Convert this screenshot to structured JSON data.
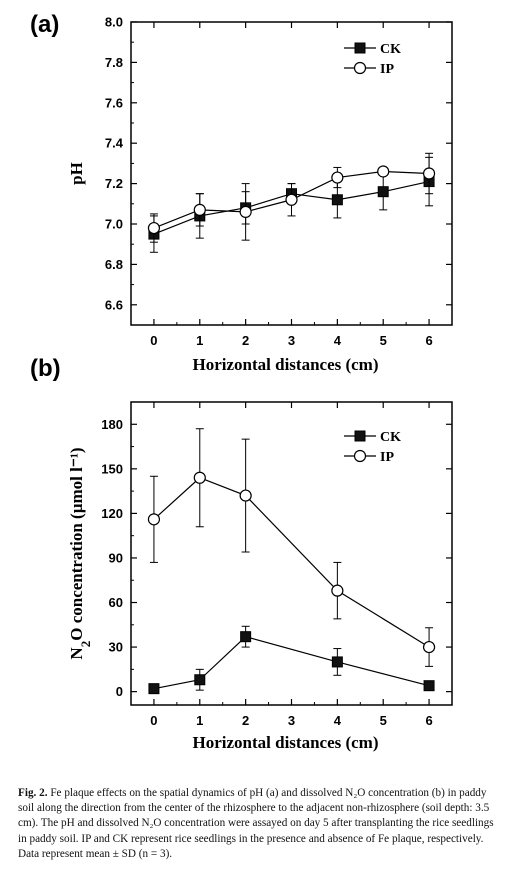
{
  "chart_data": [
    {
      "type": "line",
      "panel_label": "(a)",
      "xlabel": "Horizontal  distances (cm)",
      "ylabel": "pH",
      "x_ticks": [
        "0",
        "1",
        "2",
        "3",
        "4",
        "5",
        "6"
      ],
      "y_ticks": [
        "6.6",
        "6.8",
        "7.0",
        "7.2",
        "7.4",
        "7.6",
        "7.8",
        "8.0"
      ],
      "xlim": [
        -0.5,
        6.5
      ],
      "ylim": [
        6.5,
        8.0
      ],
      "legend": {
        "position": "top-right"
      },
      "series": [
        {
          "name": "CK",
          "marker": "filled-square",
          "x": [
            0,
            1,
            2,
            3,
            4,
            5,
            6
          ],
          "values": [
            6.95,
            7.04,
            7.08,
            7.15,
            7.12,
            7.16,
            7.21
          ],
          "err": [
            0.09,
            0.11,
            0.08,
            0.05,
            0.09,
            0.09,
            0.12
          ]
        },
        {
          "name": "IP",
          "marker": "open-circle",
          "x": [
            0,
            1,
            2,
            3,
            4,
            5,
            6
          ],
          "values": [
            6.98,
            7.07,
            7.06,
            7.12,
            7.23,
            7.26,
            7.25
          ],
          "err": [
            0.07,
            0.08,
            0.14,
            0.08,
            0.05,
            0.02,
            0.1
          ]
        }
      ]
    },
    {
      "type": "line",
      "panel_label": "(b)",
      "xlabel": "Horizontal  distances (cm)",
      "ylabel": "N2O  concentration (µmol l⁻¹)",
      "x_ticks": [
        "0",
        "1",
        "2",
        "3",
        "4",
        "5",
        "6"
      ],
      "y_ticks": [
        "0",
        "30",
        "60",
        "90",
        "120",
        "150",
        "180"
      ],
      "xlim": [
        -0.5,
        6.5
      ],
      "ylim": [
        -9,
        195
      ],
      "legend": {
        "position": "top-right"
      },
      "series": [
        {
          "name": "CK",
          "marker": "filled-square",
          "x": [
            0,
            1,
            2,
            4,
            6
          ],
          "values": [
            2,
            8,
            37,
            20,
            4
          ],
          "err": [
            0,
            7,
            7,
            9,
            3
          ]
        },
        {
          "name": "IP",
          "marker": "open-circle",
          "x": [
            0,
            1,
            2,
            4,
            6
          ],
          "values": [
            116,
            144,
            132,
            68,
            30
          ],
          "err": [
            29,
            33,
            38,
            19,
            13
          ]
        }
      ]
    }
  ],
  "caption": {
    "label": "Fig. 2.",
    "text": "Fe plaque effects on the spatial dynamics of pH (a) and dissolved N₂O concentration (b) in paddy soil along the direction from the center of the rhizosphere to the adjacent non-rhizosphere (soil depth: 3.5 cm). The pH and dissolved N₂O concentration were assayed on day 5 after transplanting the rice seedlings in paddy soil. IP and CK represent rice seedlings in the presence and absence of Fe plaque, respectively. Data represent mean ± SD (n = 3)."
  }
}
